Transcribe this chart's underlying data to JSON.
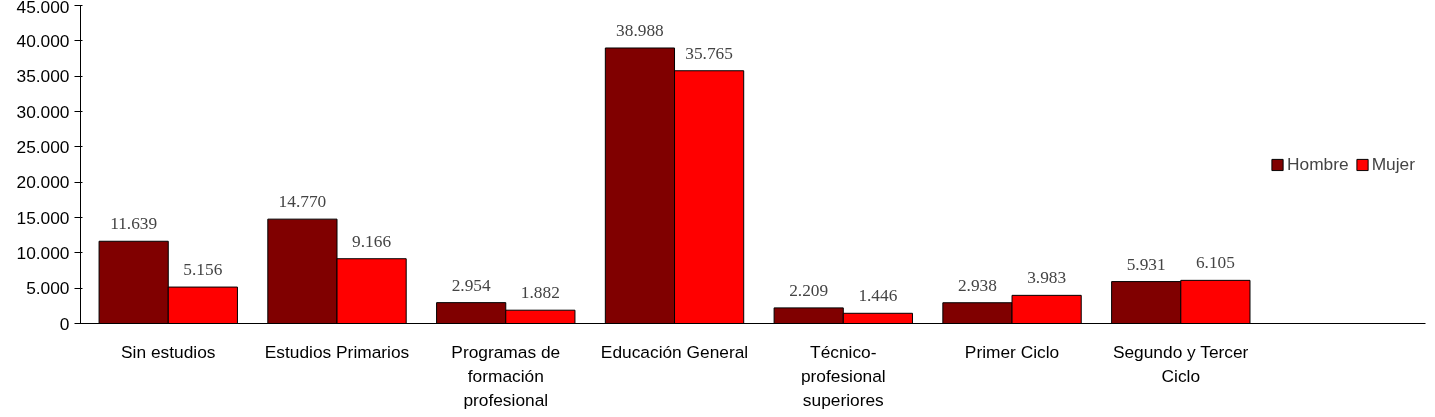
{
  "chart_data": {
    "type": "bar",
    "categories": [
      "Sin estudios",
      "Estudios Primarios",
      "Programas de formación profesional",
      "Educación General",
      "Técnico-profesional superiores",
      "Primer Ciclo",
      "Segundo y Tercer Ciclo"
    ],
    "series": [
      {
        "name": "Hombre",
        "color": "#800000",
        "values": [
          11639,
          14770,
          2954,
          38988,
          2209,
          2938,
          5931
        ],
        "value_labels": [
          "11.639",
          "14.770",
          "2.954",
          "38.988",
          "2.209",
          "2.938",
          "5.931"
        ]
      },
      {
        "name": "Mujer",
        "color": "#ff0000",
        "values": [
          5156,
          9166,
          1882,
          35765,
          1446,
          3983,
          6105
        ],
        "value_labels": [
          "5.156",
          "9.166",
          "1.882",
          "35.765",
          "1.446",
          "3.983",
          "6.105"
        ]
      }
    ],
    "ylim": [
      0,
      45000
    ],
    "yticks": [
      0,
      {
        "value": 5000,
        "label": "5.000"
      },
      {
        "value": 10000,
        "label": "10.000"
      },
      {
        "value": 15000,
        "label": "15.000"
      },
      {
        "value": 20000,
        "label": "20.000"
      },
      {
        "value": 25000,
        "label": "25.000"
      },
      {
        "value": 30000,
        "label": "30.000"
      },
      {
        "value": 35000,
        "label": "35.000"
      },
      {
        "value": 40000,
        "label": "40.000"
      },
      {
        "value": 45000,
        "label": "45.000"
      }
    ],
    "grid": false,
    "legend": "right"
  }
}
